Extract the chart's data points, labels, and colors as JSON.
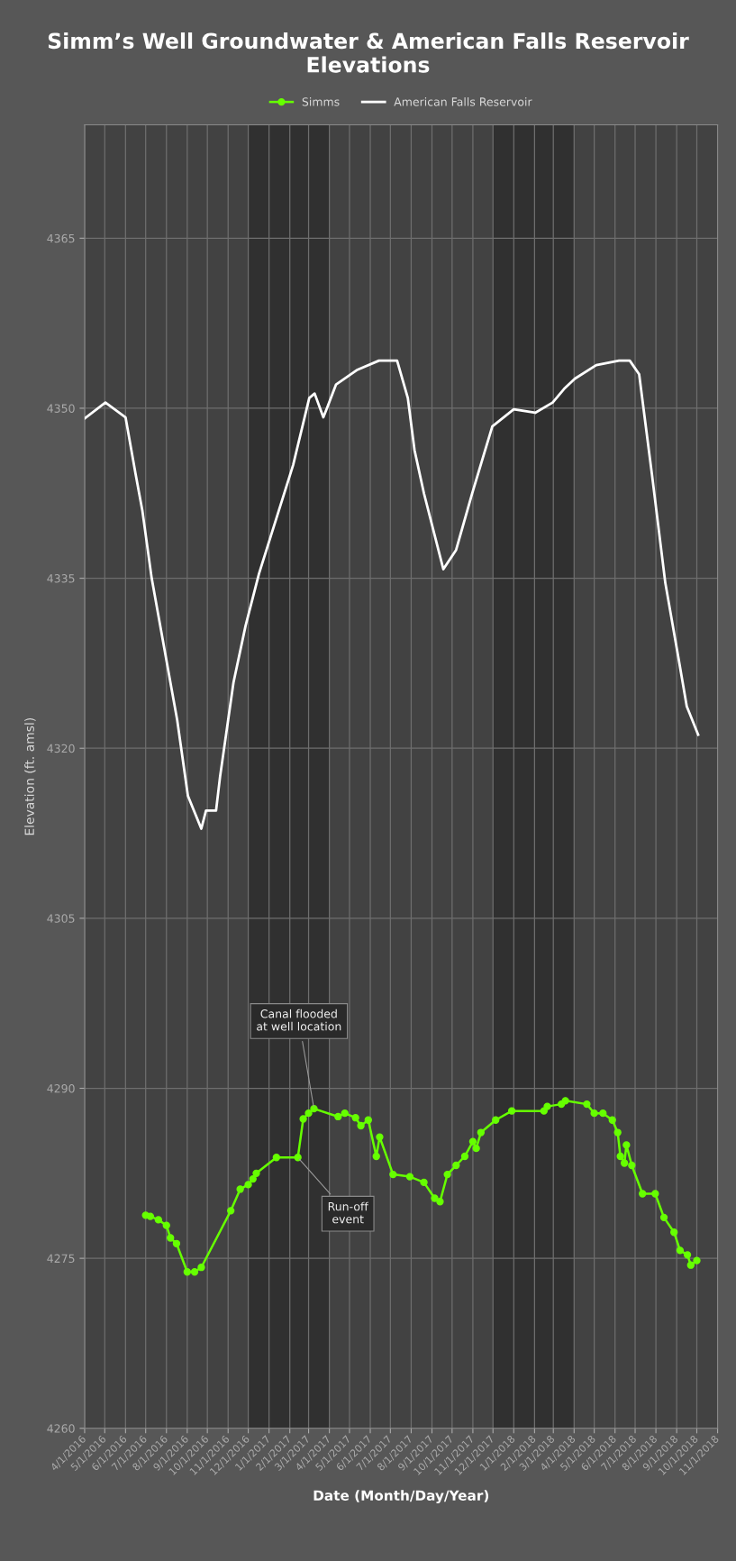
{
  "chart_data": {
    "type": "line",
    "title": "Simm’s Well Groundwater & American Falls Reservoir Elevations",
    "xlabel": "Date (Month/Day/Year)",
    "ylabel": "Elevation (ft. amsl)",
    "xlim": [
      "2016-04-01",
      "2018-11-01"
    ],
    "xticks": [
      {
        "value": "2016-04-01",
        "label": "4/1/2016"
      },
      {
        "value": "2016-05-01",
        "label": "5/1/2016"
      },
      {
        "value": "2016-06-01",
        "label": "6/1/2016"
      },
      {
        "value": "2016-07-01",
        "label": "7/1/2016"
      },
      {
        "value": "2016-08-01",
        "label": "8/1/2016"
      },
      {
        "value": "2016-09-01",
        "label": "9/1/2016"
      },
      {
        "value": "2016-10-01",
        "label": "10/1/2016"
      },
      {
        "value": "2016-11-01",
        "label": "11/1/2016"
      },
      {
        "value": "2016-12-01",
        "label": "12/1/2016"
      },
      {
        "value": "2017-01-01",
        "label": "1/1/2017"
      },
      {
        "value": "2017-02-01",
        "label": "2/1/2017"
      },
      {
        "value": "2017-03-01",
        "label": "3/1/2017"
      },
      {
        "value": "2017-04-01",
        "label": "4/1/2017"
      },
      {
        "value": "2017-05-01",
        "label": "5/1/2017"
      },
      {
        "value": "2017-06-01",
        "label": "6/1/2017"
      },
      {
        "value": "2017-07-01",
        "label": "7/1/2017"
      },
      {
        "value": "2017-08-01",
        "label": "8/1/2017"
      },
      {
        "value": "2017-09-01",
        "label": "9/1/2017"
      },
      {
        "value": "2017-10-01",
        "label": "10/1/2017"
      },
      {
        "value": "2017-11-01",
        "label": "11/1/2017"
      },
      {
        "value": "2017-12-01",
        "label": "12/1/2017"
      },
      {
        "value": "2018-01-01",
        "label": "1/1/2018"
      },
      {
        "value": "2018-02-01",
        "label": "2/1/2018"
      },
      {
        "value": "2018-03-01",
        "label": "3/1/2018"
      },
      {
        "value": "2018-04-01",
        "label": "4/1/2018"
      },
      {
        "value": "2018-05-01",
        "label": "5/1/2018"
      },
      {
        "value": "2018-06-01",
        "label": "6/1/2018"
      },
      {
        "value": "2018-07-01",
        "label": "7/1/2018"
      },
      {
        "value": "2018-08-01",
        "label": "8/1/2018"
      },
      {
        "value": "2018-09-01",
        "label": "9/1/2018"
      },
      {
        "value": "2018-10-01",
        "label": "10/1/2018"
      },
      {
        "value": "2018-11-01",
        "label": "11/1/2018"
      }
    ],
    "ylim": [
      4260,
      4375
    ],
    "yticks": [
      4260,
      4275,
      4290,
      4305,
      4320,
      4335,
      4350,
      4365
    ],
    "grid": true,
    "legend": "top",
    "bands": [
      {
        "axis": "x",
        "from": "2016-12-01",
        "to": "2017-04-01",
        "color": "#303030"
      },
      {
        "axis": "x",
        "from": "2017-12-01",
        "to": "2018-04-01",
        "color": "#303030"
      }
    ],
    "annotations": [
      {
        "text": "Canal flooded\nat well location",
        "x": "2017-03-09",
        "y": 4288.2
      },
      {
        "text": "Run-off\nevent",
        "x": "2017-02-13",
        "y": 4283.9
      }
    ],
    "series": [
      {
        "name": "Simms",
        "color": "#66ff00",
        "marker": "circle",
        "x": [
          "2016-07-01",
          "2016-07-08",
          "2016-07-20",
          "2016-08-01",
          "2016-08-07",
          "2016-08-16",
          "2016-09-01",
          "2016-09-12",
          "2016-09-22",
          "2016-11-05",
          "2016-11-19",
          "2016-12-01",
          "2016-12-08",
          "2016-12-13",
          "2017-01-12",
          "2017-02-13",
          "2017-02-21",
          "2017-03-01",
          "2017-03-09",
          "2017-04-14",
          "2017-04-24",
          "2017-05-10",
          "2017-05-18",
          "2017-05-29",
          "2017-06-10",
          "2017-06-15",
          "2017-07-05",
          "2017-07-30",
          "2017-08-20",
          "2017-09-05",
          "2017-09-13",
          "2017-09-24",
          "2017-10-07",
          "2017-10-20",
          "2017-11-01",
          "2017-11-06",
          "2017-11-13",
          "2017-12-05",
          "2017-12-29",
          "2018-02-15",
          "2018-02-20",
          "2018-03-13",
          "2018-03-19",
          "2018-04-20",
          "2018-05-01",
          "2018-05-14",
          "2018-05-28",
          "2018-06-05",
          "2018-06-09",
          "2018-06-15",
          "2018-06-18",
          "2018-06-26",
          "2018-07-12",
          "2018-07-31",
          "2018-08-13",
          "2018-08-28",
          "2018-09-06",
          "2018-09-17",
          "2018-09-22",
          "2018-10-01"
        ],
        "values": [
          4278.8,
          4278.7,
          4278.4,
          4277.9,
          4276.8,
          4276.3,
          4273.8,
          4273.8,
          4274.2,
          4279.2,
          4281.1,
          4281.5,
          4282.0,
          4282.5,
          4283.9,
          4283.9,
          4287.3,
          4287.8,
          4288.2,
          4287.5,
          4287.8,
          4287.4,
          4286.7,
          4287.2,
          4284.0,
          4285.7,
          4282.4,
          4282.2,
          4281.7,
          4280.3,
          4280.0,
          4282.4,
          4283.2,
          4284.0,
          4285.3,
          4284.7,
          4286.1,
          4287.2,
          4288.0,
          4288.0,
          4288.4,
          4288.6,
          4288.9,
          4288.6,
          4287.8,
          4287.8,
          4287.2,
          4286.1,
          4284.0,
          4283.4,
          4285.0,
          4283.2,
          4280.7,
          4280.7,
          4278.6,
          4277.3,
          4275.7,
          4275.3,
          4274.4,
          4274.8
        ]
      },
      {
        "name": "American Falls Reservoir",
        "color": "#ffffff",
        "marker": "none",
        "x": [
          "2016-04-01",
          "2016-05-02",
          "2016-06-01",
          "2016-06-16",
          "2016-06-26",
          "2016-07-10",
          "2016-07-20",
          "2016-08-17",
          "2016-09-02",
          "2016-09-22",
          "2016-09-29",
          "2016-10-14",
          "2016-10-20",
          "2016-11-09",
          "2016-11-27",
          "2016-12-17",
          "2017-02-06",
          "2017-03-02",
          "2017-03-10",
          "2017-03-23",
          "2017-03-29",
          "2017-04-11",
          "2017-05-13",
          "2017-06-14",
          "2017-07-11",
          "2017-07-27",
          "2017-08-06",
          "2017-08-20",
          "2017-09-18",
          "2017-10-07",
          "2017-10-31",
          "2017-11-30",
          "2018-01-01",
          "2018-02-02",
          "2018-02-28",
          "2018-03-17",
          "2018-04-02",
          "2018-05-04",
          "2018-06-07",
          "2018-06-23",
          "2018-07-07",
          "2018-07-26",
          "2018-08-15",
          "2018-09-05",
          "2018-09-16",
          "2018-10-03"
        ],
        "values": [
          4349.1,
          4350.5,
          4349.2,
          4344.2,
          4341.0,
          4335.0,
          4331.7,
          4322.5,
          4315.8,
          4312.9,
          4314.5,
          4314.5,
          4317.5,
          4325.8,
          4330.8,
          4335.4,
          4345.0,
          4350.9,
          4351.3,
          4349.2,
          4350.1,
          4352.1,
          4353.4,
          4354.2,
          4354.2,
          4350.9,
          4346.3,
          4342.5,
          4335.8,
          4337.5,
          4342.5,
          4348.4,
          4349.9,
          4349.6,
          4350.5,
          4351.7,
          4352.6,
          4353.8,
          4354.2,
          4354.2,
          4353.0,
          4344.2,
          4334.6,
          4327.5,
          4323.7,
          4321.2
        ]
      }
    ]
  }
}
